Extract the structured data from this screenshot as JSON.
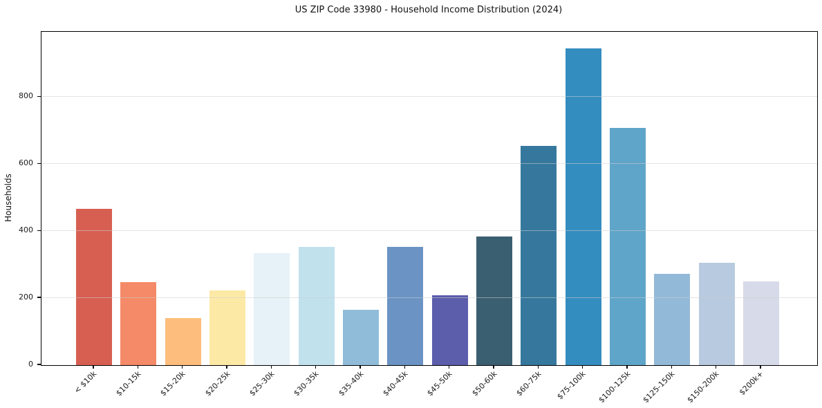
{
  "figure": {
    "background": "#ffffff",
    "text_color": "#1a1a1a",
    "grid_color": "#dddddd"
  },
  "chart_data": {
    "type": "bar",
    "title": "US ZIP Code 33980 - Household Income Distribution (2024)",
    "xlabel": "",
    "ylabel": "Households",
    "categories": [
      "< $10k",
      "$10-15k",
      "$15-20k",
      "$20-25k",
      "$25-30k",
      "$30-35k",
      "$35-40k",
      "$40-45k",
      "$45-50k",
      "$50-60k",
      "$60-75k",
      "$75-100k",
      "$100-125k",
      "$125-150k",
      "$150-200k",
      "$200k+"
    ],
    "values": [
      467,
      247,
      141,
      223,
      334,
      354,
      166,
      353,
      209,
      385,
      654,
      946,
      708,
      273,
      305,
      249
    ],
    "bar_colors": [
      "#d75f52",
      "#f48a67",
      "#fdbd7c",
      "#fde9a6",
      "#e7f2f8",
      "#c1e1ed",
      "#90bcda",
      "#6b93c4",
      "#5c5dab",
      "#3a5f70",
      "#36789d",
      "#348dbf",
      "#5fa5c9",
      "#93b9d8",
      "#b8cadf",
      "#d7dae8"
    ],
    "yticks": [
      0,
      200,
      400,
      600,
      800
    ],
    "ylim": [
      0,
      995
    ],
    "grid": "horizontal",
    "legend": "none",
    "x_tick_rotation_deg": 45
  }
}
